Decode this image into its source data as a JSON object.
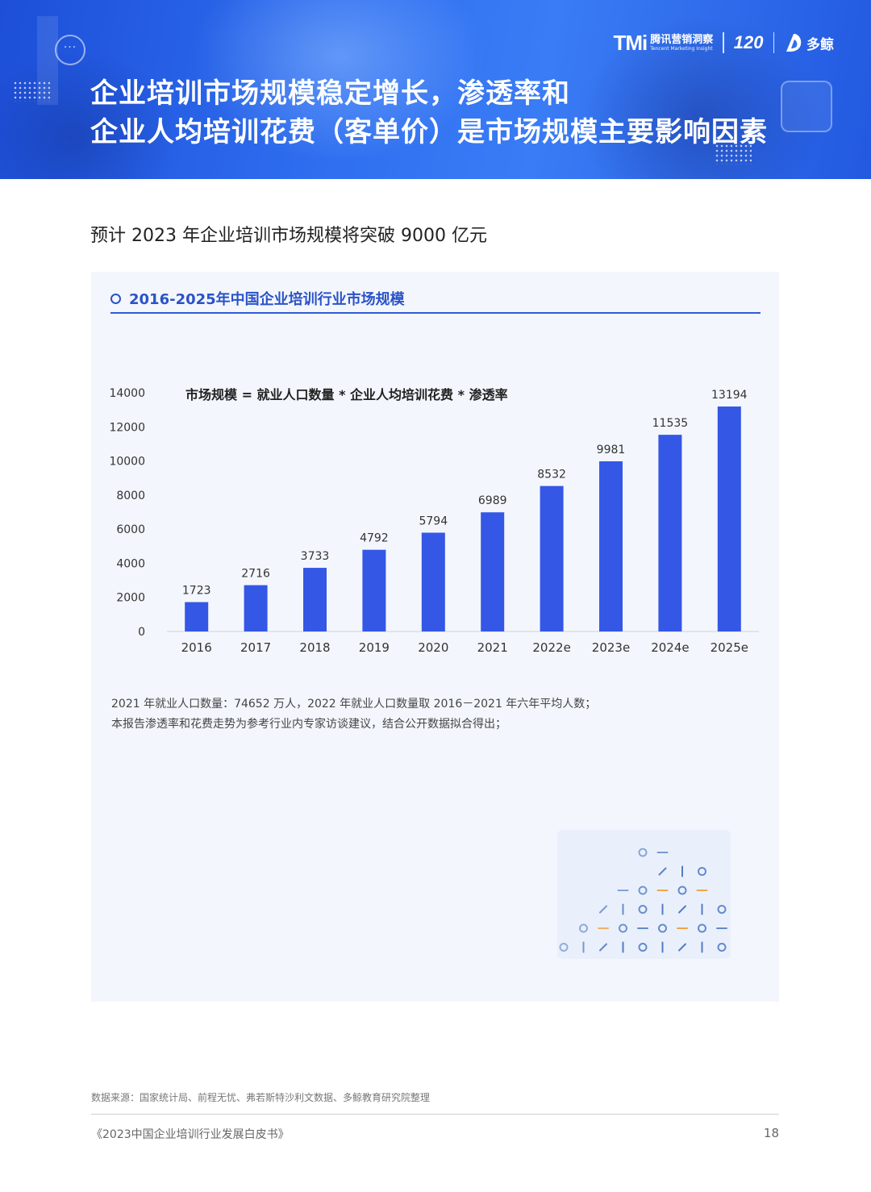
{
  "header": {
    "title_line1": "企业培训市场规模稳定增长，渗透率和",
    "title_line2": "企业人均培训花费（客单价）是市场规模主要影响因素",
    "logos": {
      "tmi_text": "TMi",
      "tmi_cn": "腾讯营销洞察",
      "tmi_en": "Tencent Marketing Insight",
      "anniversary": "120",
      "duojing_cn": "多鲸"
    }
  },
  "subtitle": "预计 2023 年企业培训市场规模将突破 9000 亿元",
  "panel": {
    "title": "2016-2025年中国企业培训行业市场规模"
  },
  "chart_data": {
    "type": "bar",
    "title": "2016-2025年中国企业培训行业市场规模",
    "annotation": "市场规模 = 就业人口数量 * 企业人均培训花费 * 渗透率",
    "categories": [
      "2016",
      "2017",
      "2018",
      "2019",
      "2020",
      "2021",
      "2022e",
      "2023e",
      "2024e",
      "2025e"
    ],
    "values": [
      1723,
      2716,
      3733,
      4792,
      5794,
      6989,
      8532,
      9981,
      11535,
      13194
    ],
    "ylim": [
      0,
      14000
    ],
    "yticks": [
      0,
      2000,
      4000,
      6000,
      8000,
      10000,
      12000,
      14000
    ],
    "bar_color": "#3557e6",
    "grid": false
  },
  "notes": [
    "2021 年就业人口数量：74652 万人，2022 年就业人口数量取 2016－2021 年六年平均人数；",
    "本报告渗透率和花费走势为参考行业内专家访谈建议，结合公开数据拟合得出；"
  ],
  "footer": {
    "source": "数据来源：国家统计局、前程无忧、弗若斯特沙利文数据、多鲸教育研究院整理",
    "book": "《2023中国企业培训行业发展白皮书》",
    "page": "18"
  }
}
